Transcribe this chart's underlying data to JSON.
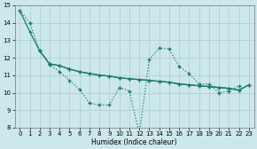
{
  "xlabel": "Humidex (Indice chaleur)",
  "xlim": [
    -0.5,
    23.5
  ],
  "ylim": [
    8,
    15
  ],
  "yticks": [
    8,
    9,
    10,
    11,
    12,
    13,
    14,
    15
  ],
  "xticks": [
    0,
    1,
    2,
    3,
    4,
    5,
    6,
    7,
    8,
    9,
    10,
    11,
    12,
    13,
    14,
    15,
    16,
    17,
    18,
    19,
    20,
    21,
    22,
    23
  ],
  "bg_color": "#cce8ec",
  "grid_color": "#aacccc",
  "line_color": "#1a7a70",
  "series1_x": [
    0,
    1,
    2,
    3,
    4,
    5,
    6,
    7,
    8,
    9,
    10,
    11,
    12,
    13,
    14,
    15,
    16,
    17,
    18,
    19,
    20,
    21,
    22
  ],
  "series1_y": [
    14.7,
    14.0,
    12.4,
    11.6,
    11.2,
    10.7,
    10.2,
    9.4,
    9.3,
    9.3,
    10.3,
    10.1,
    7.65,
    11.9,
    12.55,
    12.5,
    11.5,
    11.1,
    10.5,
    10.5,
    10.0,
    10.1,
    10.4
  ],
  "series2_x": [
    2,
    3,
    4,
    5,
    6,
    7,
    8,
    9,
    10,
    11,
    12,
    13,
    14,
    15,
    16,
    17,
    18,
    19,
    20,
    21,
    22,
    23
  ],
  "series2_y": [
    12.4,
    11.65,
    11.55,
    11.35,
    11.2,
    11.1,
    11.0,
    10.95,
    10.85,
    10.8,
    10.75,
    10.7,
    10.65,
    10.6,
    10.5,
    10.45,
    10.4,
    10.35,
    10.3,
    10.25,
    10.15,
    10.45
  ],
  "series3_x": [
    0,
    1,
    2,
    3,
    4,
    5,
    6,
    7,
    8,
    9,
    10,
    11,
    12,
    13,
    14,
    15,
    16,
    17,
    18,
    19,
    20,
    21,
    22,
    23
  ],
  "series3_y": [
    14.7,
    13.5,
    12.4,
    11.65,
    11.55,
    11.35,
    11.2,
    11.1,
    11.0,
    10.95,
    10.85,
    10.8,
    10.75,
    10.7,
    10.65,
    10.6,
    10.5,
    10.45,
    10.4,
    10.35,
    10.3,
    10.25,
    10.15,
    10.45
  ]
}
